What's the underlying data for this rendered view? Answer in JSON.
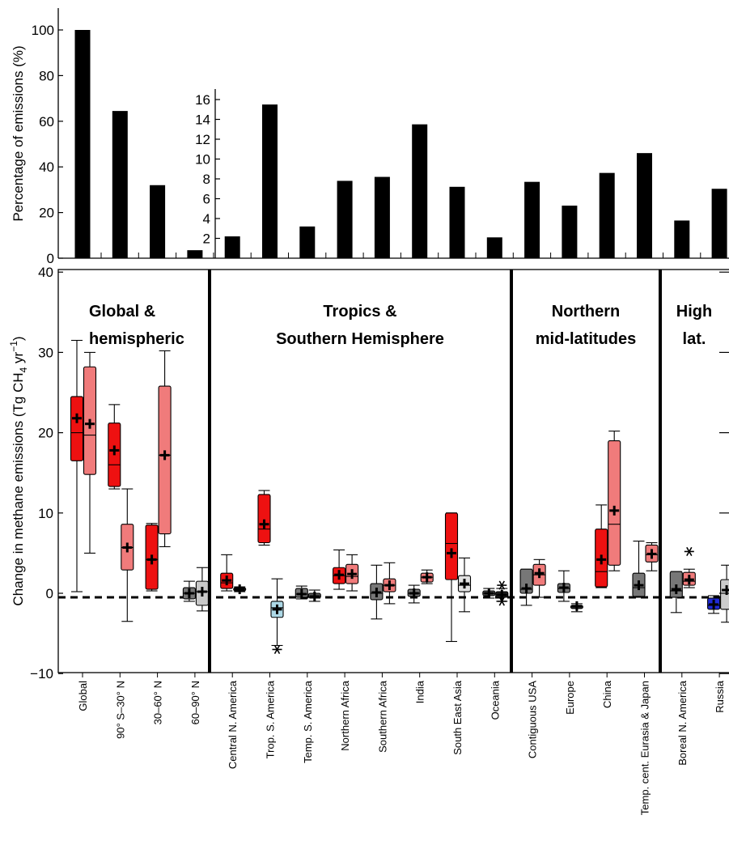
{
  "chart_data": [
    {
      "type": "bar",
      "ylabel": "Percentage of emissions (%)",
      "categories": [
        "Global",
        "90° S–30° N",
        "30–60° N",
        "60–90° N",
        "Central N. America",
        "Trop. S. America",
        "Temp. S. America",
        "Northern Africa",
        "Southern Africa",
        "India",
        "South East Asia",
        "Oceania",
        "Contiguous USA",
        "Europe",
        "China",
        "Temp. cent. Eurasia & Japan",
        "Boreal N. America",
        "Russia"
      ],
      "main_axis": {
        "ylim": [
          0,
          105
        ],
        "ticks": [
          0,
          20,
          40,
          60,
          80,
          100
        ],
        "applies_to": [
          "Global",
          "90° S–30° N",
          "30–60° N",
          "60–90° N"
        ]
      },
      "inset_axis": {
        "ylim": [
          0,
          17
        ],
        "ticks": [
          2,
          4,
          6,
          8,
          10,
          12,
          14,
          16
        ],
        "applies_to_from": "Central N. America"
      },
      "values": [
        100,
        64.5,
        32,
        3.5,
        2.2,
        15.5,
        3.2,
        7.8,
        8.2,
        13.5,
        7.2,
        2.1,
        7.7,
        5.3,
        8.6,
        10.6,
        3.8,
        7
      ]
    },
    {
      "type": "box",
      "ylabel": "Change in methane emissions (Tg CH4 yr−1)",
      "ylabel_main": "Change in methane emissions (Tg CH",
      "ylabel_sub": "4",
      "ylabel_mid": " yr",
      "ylabel_sup": "−1",
      "ylabel_end": ")",
      "ylim": [
        -10,
        40
      ],
      "ticks": [
        -10,
        0,
        10,
        20,
        30,
        40
      ],
      "tick_labels": [
        "−10",
        "0",
        "10",
        "20",
        "30",
        "40"
      ],
      "reference_line": -0.5,
      "regions": [
        {
          "lines": [
            "Global &",
            "hemispheric"
          ],
          "cats": [
            0,
            3
          ]
        },
        {
          "lines": [
            "Tropics &",
            "Southern Hemisphere"
          ],
          "cats": [
            4,
            11
          ]
        },
        {
          "lines": [
            "Northern",
            "mid-latitudes"
          ],
          "cats": [
            12,
            15
          ]
        },
        {
          "lines": [
            "High",
            "lat."
          ],
          "cats": [
            16,
            17
          ]
        }
      ],
      "boxes": [
        {
          "cat": 0,
          "side": "L",
          "color": "#ee1111",
          "wl": 0.2,
          "wh": 31.5,
          "q1": 16.5,
          "med": 20,
          "q3": 24.5,
          "mean": 21.8
        },
        {
          "cat": 0,
          "side": "R",
          "color": "#f07b7b",
          "wl": 5,
          "wh": 30,
          "q1": 14.8,
          "med": 19.7,
          "q3": 28.2,
          "mean": 21.1
        },
        {
          "cat": 1,
          "side": "L",
          "color": "#ee1111",
          "wl": 13,
          "wh": 23.5,
          "q1": 13.3,
          "med": 16,
          "q3": 21.2,
          "mean": 17.8
        },
        {
          "cat": 1,
          "side": "R",
          "color": "#f07b7b",
          "wl": -3.5,
          "wh": 13,
          "q1": 2.9,
          "med": 5.7,
          "q3": 8.6,
          "mean": 5.7
        },
        {
          "cat": 2,
          "side": "L",
          "color": "#ee1111",
          "wl": 0.3,
          "wh": 8.7,
          "q1": 0.5,
          "med": 4.2,
          "q3": 8.5,
          "mean": 4.2
        },
        {
          "cat": 2,
          "side": "R",
          "color": "#f07b7b",
          "wl": 5.8,
          "wh": 30.2,
          "q1": 7.4,
          "med": 17.2,
          "q3": 25.8,
          "mean": 17.2
        },
        {
          "cat": 3,
          "side": "L",
          "color": "#777777",
          "wl": -1,
          "wh": 1.5,
          "q1": -0.7,
          "med": 0,
          "q3": 0.7,
          "mean": 0
        },
        {
          "cat": 3,
          "side": "R",
          "color": "#c8c8c8",
          "wl": -2.2,
          "wh": 3.2,
          "q1": -1.5,
          "med": 0.2,
          "q3": 1.5,
          "mean": 0.2
        },
        {
          "cat": 4,
          "side": "L",
          "color": "#ee1111",
          "wl": 0.3,
          "wh": 4.8,
          "q1": 0.6,
          "med": 1.3,
          "q3": 2.5,
          "mean": 1.6
        },
        {
          "cat": 4,
          "side": "R",
          "color": "#333333",
          "wl": 0.2,
          "wh": 0.8,
          "q1": 0.3,
          "med": 0.5,
          "q3": 0.7,
          "mean": 0.5
        },
        {
          "cat": 5,
          "side": "L",
          "color": "#ee1111",
          "wl": 6,
          "wh": 12.8,
          "q1": 6.3,
          "med": 8,
          "q3": 12.3,
          "mean": 8.6
        },
        {
          "cat": 5,
          "side": "R",
          "color": "#add8e6",
          "wl": -6.5,
          "wh": 1.8,
          "q1": -3,
          "med": -1.8,
          "q3": -1,
          "mean": -2,
          "outlier": -7
        },
        {
          "cat": 6,
          "side": "L",
          "color": "#777777",
          "wl": -0.7,
          "wh": 0.9,
          "q1": -0.5,
          "med": -0.1,
          "q3": 0.6,
          "mean": -0.1
        },
        {
          "cat": 6,
          "side": "R",
          "color": "#555555",
          "wl": -1,
          "wh": 0.4,
          "q1": -0.6,
          "med": -0.4,
          "q3": 0,
          "mean": -0.4
        },
        {
          "cat": 7,
          "side": "L",
          "color": "#ee1111",
          "wl": 0.5,
          "wh": 5.4,
          "q1": 1.2,
          "med": 2.2,
          "q3": 3.2,
          "mean": 2.3
        },
        {
          "cat": 7,
          "side": "R",
          "color": "#f07b7b",
          "wl": 0.3,
          "wh": 4.8,
          "q1": 1.2,
          "med": 2.1,
          "q3": 3.6,
          "mean": 2.4
        },
        {
          "cat": 8,
          "side": "L",
          "color": "#777777",
          "wl": -3.2,
          "wh": 3.5,
          "q1": -0.8,
          "med": 0,
          "q3": 1.2,
          "mean": 0.1
        },
        {
          "cat": 8,
          "side": "R",
          "color": "#f07b7b",
          "wl": -1.3,
          "wh": 3.8,
          "q1": 0.2,
          "med": 1,
          "q3": 1.8,
          "mean": 1
        },
        {
          "cat": 9,
          "side": "L",
          "color": "#777777",
          "wl": -1.2,
          "wh": 1,
          "q1": -0.4,
          "med": 0,
          "q3": 0.5,
          "mean": 0
        },
        {
          "cat": 9,
          "side": "R",
          "color": "#f07b7b",
          "wl": 1.2,
          "wh": 2.9,
          "q1": 1.4,
          "med": 2,
          "q3": 2.5,
          "mean": 2
        },
        {
          "cat": 10,
          "side": "L",
          "color": "#ee1111",
          "wl": -6,
          "wh": 10,
          "q1": 1.7,
          "med": 6.2,
          "q3": 10,
          "mean": 5
        },
        {
          "cat": 10,
          "side": "R",
          "color": "#e2e2e2",
          "wl": -2.3,
          "wh": 4.4,
          "q1": 0.2,
          "med": 1,
          "q3": 2.2,
          "mean": 1.2
        },
        {
          "cat": 11,
          "side": "L",
          "color": "#666666",
          "wl": -0.6,
          "wh": 0.6,
          "q1": -0.3,
          "med": 0,
          "q3": 0.3,
          "mean": 0
        },
        {
          "cat": 11,
          "side": "R",
          "color": "#222222",
          "wl": -1,
          "wh": 0.6,
          "q1": -0.5,
          "med": -0.2,
          "q3": 0.2,
          "mean": -0.2,
          "outlier": 1,
          "outlier2": -1
        },
        {
          "cat": 12,
          "side": "L",
          "color": "#777777",
          "wl": -1.5,
          "wh": 3,
          "q1": 0,
          "med": 0.5,
          "q3": 3,
          "mean": 0.6
        },
        {
          "cat": 12,
          "side": "R",
          "color": "#f07b7b",
          "wl": -0.5,
          "wh": 4.2,
          "q1": 1,
          "med": 2.3,
          "q3": 3.6,
          "mean": 2.5
        },
        {
          "cat": 13,
          "side": "L",
          "color": "#777777",
          "wl": -1,
          "wh": 2.8,
          "q1": 0.1,
          "med": 0.6,
          "q3": 1.2,
          "mean": 0.7
        },
        {
          "cat": 13,
          "side": "R",
          "color": "#333333",
          "wl": -2.3,
          "wh": -1.3,
          "q1": -1.9,
          "med": -1.6,
          "q3": -1.5,
          "mean": -1.6
        },
        {
          "cat": 14,
          "side": "L",
          "color": "#ee1111",
          "wl": 0.7,
          "wh": 11,
          "q1": 0.8,
          "med": 2.7,
          "q3": 8,
          "mean": 4.2
        },
        {
          "cat": 14,
          "side": "R",
          "color": "#f07b7b",
          "wl": 2.8,
          "wh": 20.2,
          "q1": 3.5,
          "med": 8.6,
          "q3": 19,
          "mean": 10.3
        },
        {
          "cat": 15,
          "side": "L",
          "color": "#777777",
          "wl": -0.5,
          "wh": 6.5,
          "q1": -0.4,
          "med": 0.7,
          "q3": 2.5,
          "mean": 1
        },
        {
          "cat": 15,
          "side": "R",
          "color": "#f07b7b",
          "wl": 2.8,
          "wh": 6.3,
          "q1": 3.9,
          "med": 4.8,
          "q3": 6,
          "mean": 4.9
        },
        {
          "cat": 16,
          "side": "L",
          "color": "#777777",
          "wl": -2.4,
          "wh": 2.7,
          "q1": -0.5,
          "med": 0.3,
          "q3": 2.7,
          "mean": 0.5
        },
        {
          "cat": 16,
          "side": "R",
          "color": "#f07b7b",
          "wl": 0.7,
          "wh": 3,
          "q1": 1,
          "med": 1.5,
          "q3": 2.6,
          "mean": 1.7,
          "outlier": 5.2
        },
        {
          "cat": 17,
          "side": "L",
          "color": "#1f2ad6",
          "wl": -2.5,
          "wh": -0.3,
          "q1": -2,
          "med": -1.5,
          "q3": -0.6,
          "mean": -1.4
        },
        {
          "cat": 17,
          "side": "R",
          "color": "#cccccc",
          "wl": -3.6,
          "wh": 3.5,
          "q1": -2,
          "med": 0,
          "q3": 1.7,
          "mean": 0.4
        }
      ]
    }
  ]
}
